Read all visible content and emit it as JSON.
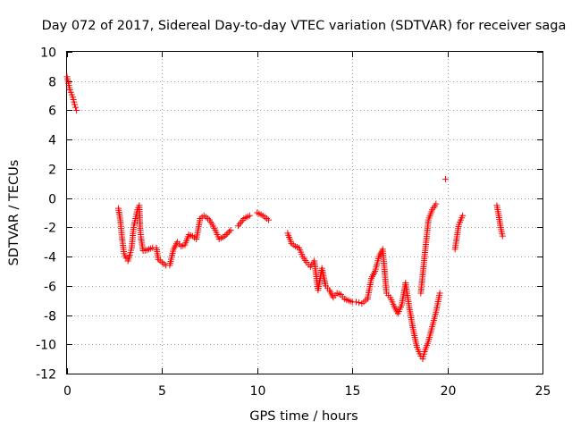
{
  "chart_data": {
    "type": "scatter",
    "title": "Day 072 of 2017, Sidereal Day-to-day VTEC variation (SDTVAR) for receiver saga",
    "xlabel": "GPS time / hours",
    "ylabel": "SDTVAR / TECUs",
    "xlim": [
      0,
      25
    ],
    "ylim": [
      -12,
      10
    ],
    "xticks": [
      0,
      5,
      10,
      15,
      20,
      25
    ],
    "yticks": [
      -12,
      -10,
      -8,
      -6,
      -4,
      -2,
      0,
      2,
      4,
      6,
      8,
      10
    ],
    "grid": true,
    "marker": "+",
    "color": "#ff0000",
    "series": [
      {
        "name": "SDTVAR",
        "x": [
          0.0,
          0.15,
          0.3,
          0.4,
          0.45,
          0.5,
          2.7,
          2.8,
          2.9,
          3.0,
          3.1,
          3.2,
          3.3,
          3.4,
          3.5,
          3.6,
          3.7,
          3.8,
          3.85,
          3.9,
          3.95,
          4.0,
          4.1,
          4.3,
          4.5,
          4.7,
          4.8,
          5.0,
          5.2,
          5.4,
          5.6,
          5.8,
          6.0,
          6.2,
          6.4,
          6.6,
          6.8,
          7.0,
          7.2,
          7.5,
          7.8,
          8.0,
          8.3,
          8.6,
          9.0,
          9.3,
          9.6,
          10.0,
          10.3,
          10.6,
          11.6,
          11.8,
          12.0,
          12.2,
          12.4,
          12.6,
          12.8,
          13.0,
          13.2,
          13.4,
          13.6,
          13.8,
          14.0,
          14.2,
          14.4,
          14.6,
          14.8,
          15.0,
          15.2,
          15.5,
          15.8,
          16.0,
          16.2,
          16.4,
          16.6,
          16.8,
          17.0,
          17.2,
          17.4,
          17.6,
          17.8,
          18.0,
          18.2,
          18.4,
          18.6,
          18.7,
          18.8,
          19.0,
          19.2,
          19.4,
          19.6,
          18.6,
          18.8,
          19.0,
          19.2,
          19.4,
          19.9,
          20.4,
          20.6,
          20.8,
          22.6,
          22.7,
          22.8,
          22.9
        ],
        "y": [
          8.3,
          7.4,
          6.9,
          6.4,
          6.2,
          6.0,
          -0.7,
          -1.5,
          -2.8,
          -3.8,
          -4.1,
          -4.3,
          -3.9,
          -3.4,
          -2.0,
          -1.4,
          -0.8,
          -0.5,
          -2.2,
          -2.8,
          -3.2,
          -3.6,
          -3.6,
          -3.5,
          -3.4,
          -3.4,
          -4.2,
          -4.4,
          -4.6,
          -4.6,
          -3.5,
          -3.0,
          -3.3,
          -3.2,
          -2.5,
          -2.6,
          -2.8,
          -1.4,
          -1.2,
          -1.5,
          -2.2,
          -2.8,
          -2.6,
          -2.2,
          -1.9,
          -1.4,
          -1.2,
          -1.0,
          -1.2,
          -1.5,
          -2.4,
          -3.1,
          -3.3,
          -3.4,
          -4.0,
          -4.4,
          -4.7,
          -4.3,
          -6.3,
          -4.8,
          -6.0,
          -6.3,
          -6.8,
          -6.5,
          -6.6,
          -6.9,
          -7.0,
          -7.1,
          -7.1,
          -7.2,
          -6.9,
          -5.5,
          -5.0,
          -4.0,
          -3.5,
          -6.5,
          -6.8,
          -7.4,
          -7.9,
          -7.3,
          -5.8,
          -7.5,
          -9.0,
          -10.2,
          -10.8,
          -11.0,
          -10.5,
          -9.8,
          -8.8,
          -7.8,
          -6.5,
          -6.5,
          -4.0,
          -1.5,
          -0.8,
          -0.4,
          1.3,
          -3.5,
          -1.8,
          -1.2,
          -0.5,
          -1.2,
          -2.0,
          -2.6
        ]
      }
    ]
  }
}
